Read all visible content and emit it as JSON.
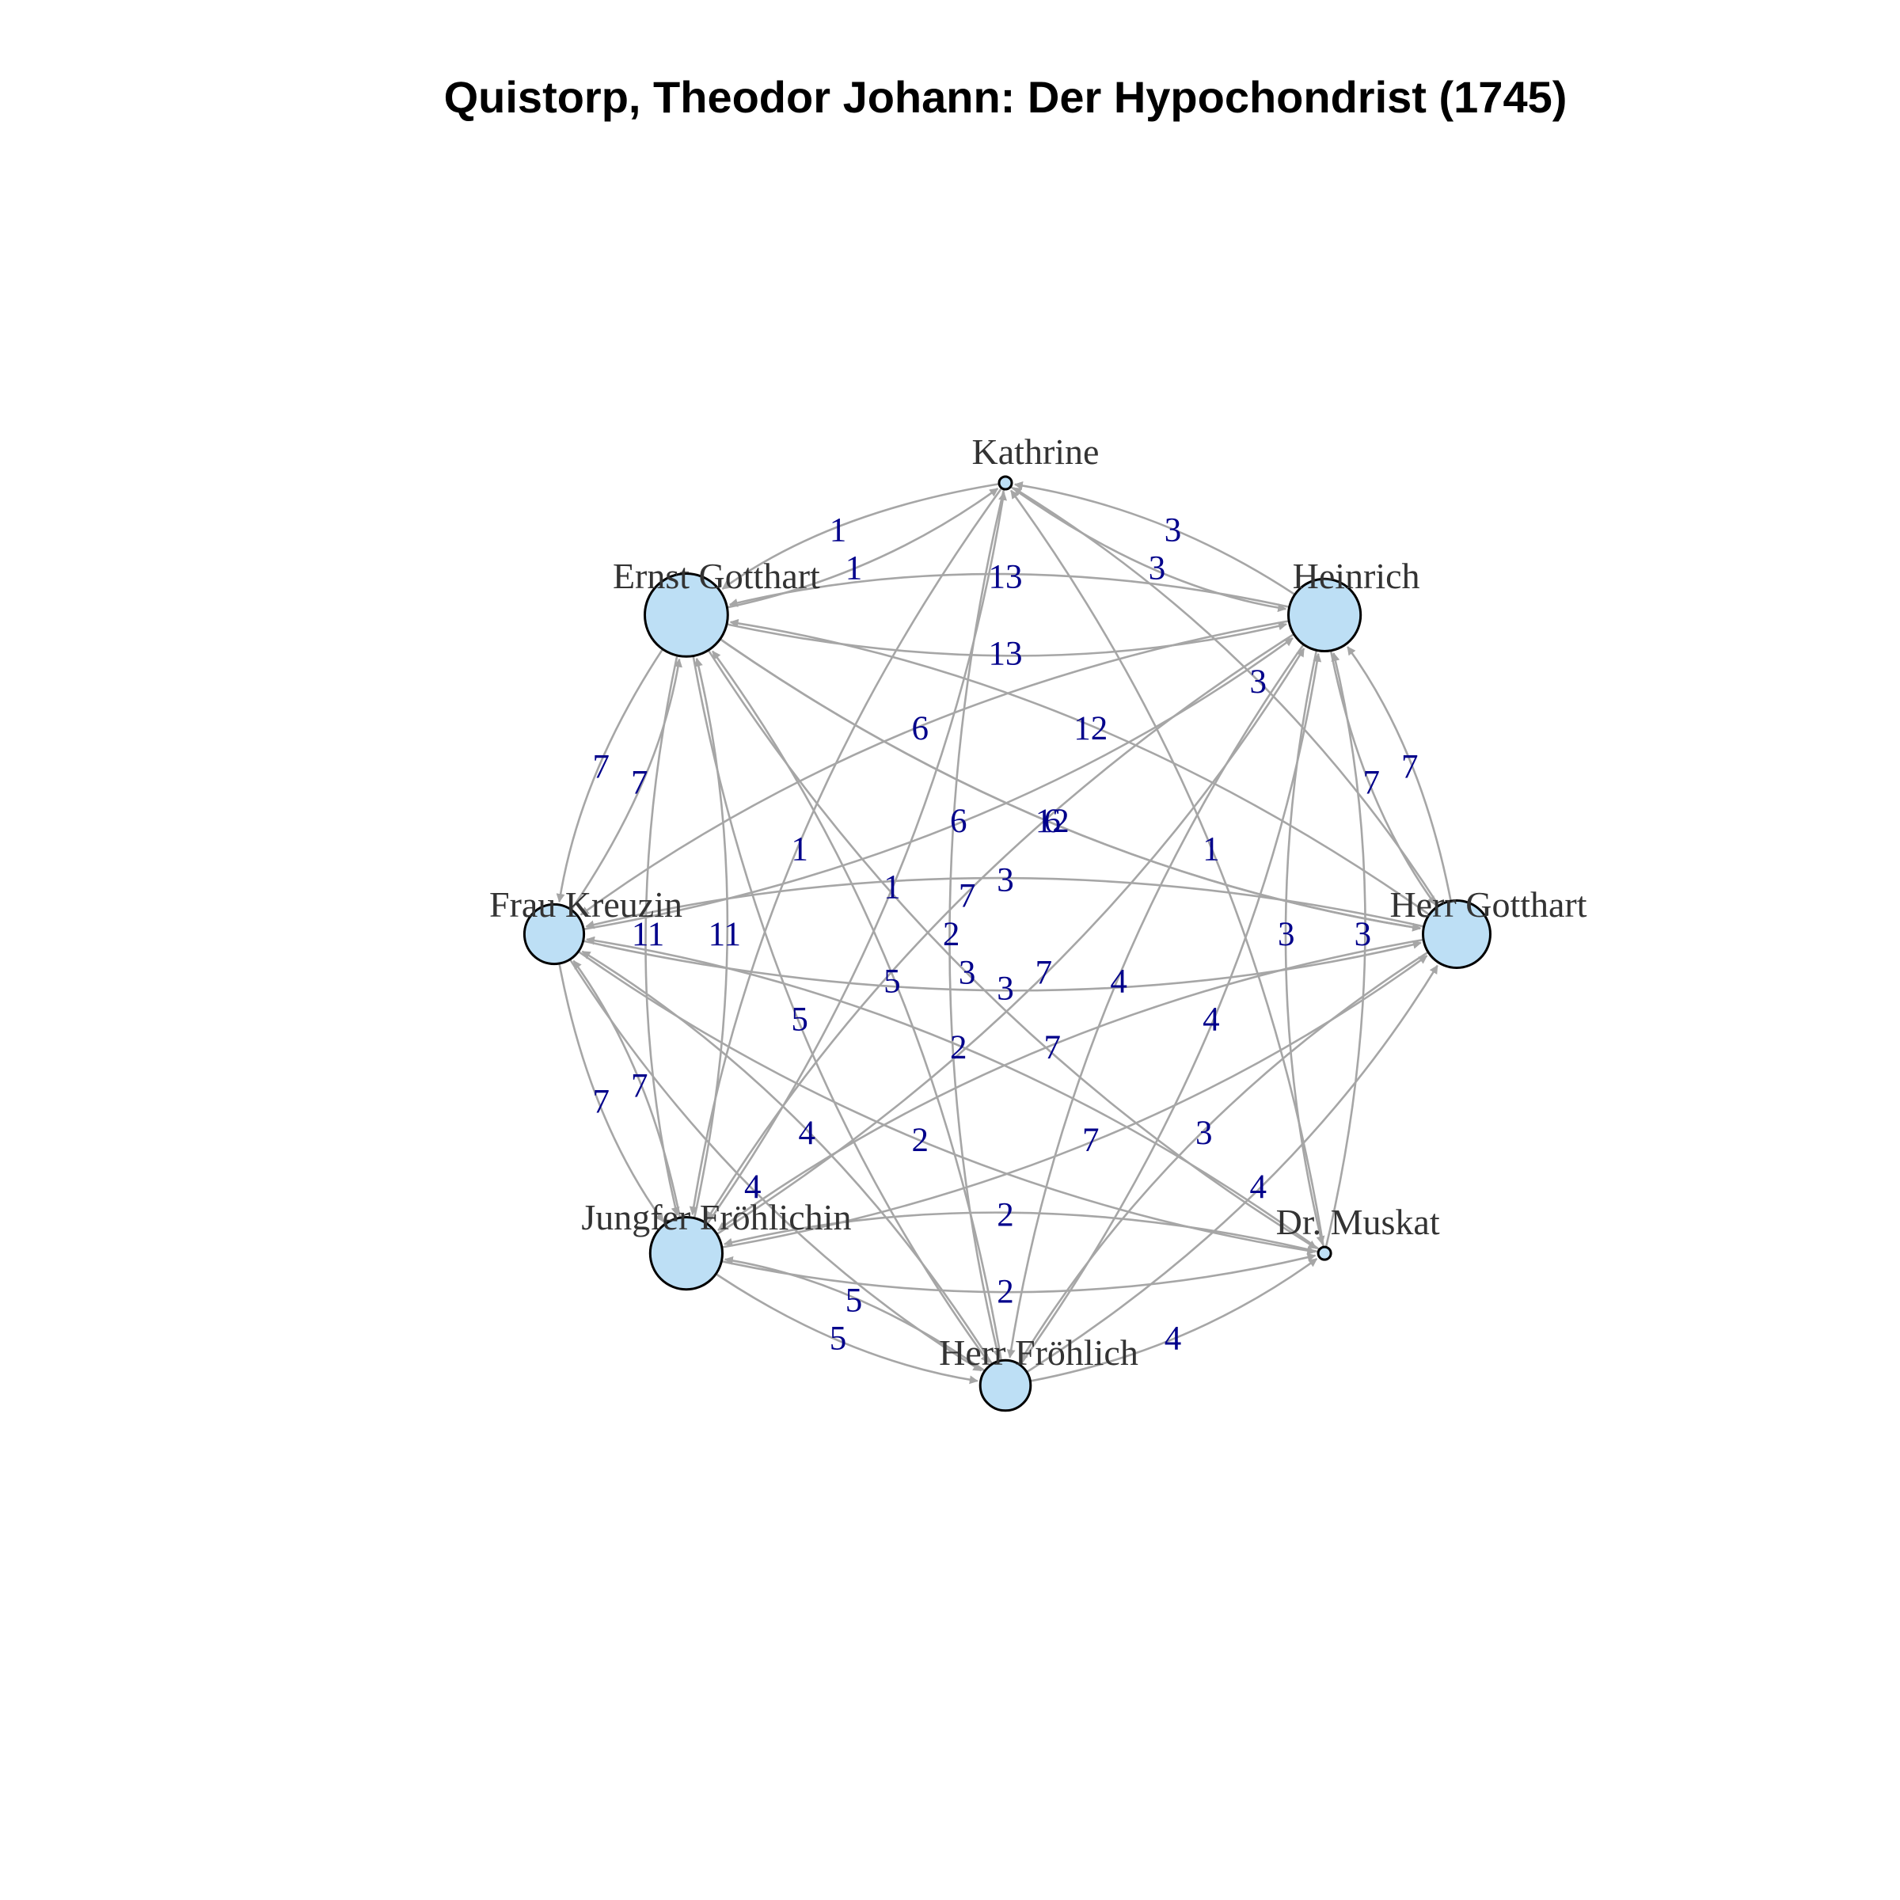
{
  "title": "Quistorp, Theodor Johann: Der Hypochondrist (1745)",
  "colors": {
    "background": "#ffffff",
    "node_fill": "#bddff5",
    "node_stroke": "#000000",
    "edge": "#a6a6a6",
    "edge_label": "#00008b",
    "node_label": "#333333"
  },
  "nodes": [
    {
      "id": "kathrine",
      "label": "Kathrine",
      "weight": 0
    },
    {
      "id": "ernst",
      "label": "Ernst Gotthart",
      "weight": 63
    },
    {
      "id": "heinrich",
      "label": "Heinrich",
      "weight": 45
    },
    {
      "id": "kreuzin",
      "label": "Frau Kreuzin",
      "weight": 28
    },
    {
      "id": "herrg",
      "label": "Herr Gotthart",
      "weight": 38
    },
    {
      "id": "jungfer",
      "label": "Jungfer Fröhlichin",
      "weight": 45
    },
    {
      "id": "muskat",
      "label": "Dr. Muskat",
      "weight": 0
    },
    {
      "id": "froehlich",
      "label": "Herr Fröhlich",
      "weight": 18
    }
  ],
  "edges": [
    {
      "from": "ernst",
      "to": "kathrine",
      "weight": "1",
      "bend": 0.12
    },
    {
      "from": "kathrine",
      "to": "heinrich",
      "weight": "3",
      "bend": 0.12
    },
    {
      "from": "kathrine",
      "to": "ernst",
      "weight": "1",
      "bend": 0.12
    },
    {
      "from": "heinrich",
      "to": "kathrine",
      "weight": "3",
      "bend": 0.12
    },
    {
      "from": "ernst",
      "to": "heinrich",
      "weight": "13",
      "bend": 0.12
    },
    {
      "from": "heinrich",
      "to": "ernst",
      "weight": "13",
      "bend": 0.12
    },
    {
      "from": "ernst",
      "to": "herrg",
      "weight": "6",
      "bend": 0.12
    },
    {
      "from": "herrg",
      "to": "kathrine",
      "weight": "3",
      "bend": 0.12
    },
    {
      "from": "jungfer",
      "to": "kathrine",
      "weight": "1",
      "bend": 0.12
    },
    {
      "from": "kathrine",
      "to": "jungfer",
      "weight": "1",
      "bend": 0.12
    },
    {
      "from": "ernst",
      "to": "herrg",
      "weight": "12",
      "bend": 0.12
    },
    {
      "from": "herrg",
      "to": "ernst",
      "weight": "12",
      "bend": 0.12
    },
    {
      "from": "heinrich",
      "to": "herrg",
      "weight": "7",
      "bend": 0.12
    },
    {
      "from": "herrg",
      "to": "heinrich",
      "weight": "7",
      "bend": 0.12
    },
    {
      "from": "kreuzin",
      "to": "ernst",
      "weight": "7",
      "bend": 0.12
    },
    {
      "from": "ernst",
      "to": "kreuzin",
      "weight": "7",
      "bend": 0.12
    },
    {
      "from": "muskat",
      "to": "heinrich",
      "weight": "3",
      "bend": 0.12
    },
    {
      "from": "heinrich",
      "to": "muskat",
      "weight": "3",
      "bend": 0.12
    },
    {
      "from": "kreuzin",
      "to": "heinrich",
      "weight": "6",
      "bend": 0.12
    },
    {
      "from": "heinrich",
      "to": "kreuzin",
      "weight": "6",
      "bend": 0.12
    },
    {
      "from": "jungfer",
      "to": "heinrich",
      "weight": "7",
      "bend": 0.12
    },
    {
      "from": "heinrich",
      "to": "jungfer",
      "weight": "7",
      "bend": 0.12
    },
    {
      "from": "ernst",
      "to": "jungfer",
      "weight": "11",
      "bend": 0.12
    },
    {
      "from": "jungfer",
      "to": "ernst",
      "weight": "11",
      "bend": 0.12
    },
    {
      "from": "kreuzin",
      "to": "herrg",
      "weight": "3",
      "bend": 0.12
    },
    {
      "from": "herrg",
      "to": "kreuzin",
      "weight": "3",
      "bend": 0.12
    },
    {
      "from": "froehlich",
      "to": "heinrich",
      "weight": "4",
      "bend": 0.12
    },
    {
      "from": "heinrich",
      "to": "froehlich",
      "weight": "4",
      "bend": 0.12
    },
    {
      "from": "ernst",
      "to": "froehlich",
      "weight": "5",
      "bend": 0.12
    },
    {
      "from": "froehlich",
      "to": "ernst",
      "weight": "5",
      "bend": 0.12
    },
    {
      "from": "ernst",
      "to": "muskat",
      "weight": "3",
      "bend": 0.12
    },
    {
      "from": "muskat",
      "to": "kathrine",
      "weight": "1",
      "bend": 0.12
    },
    {
      "from": "kreuzin",
      "to": "jungfer",
      "weight": "7",
      "bend": 0.12
    },
    {
      "from": "jungfer",
      "to": "kreuzin",
      "weight": "7",
      "bend": 0.12
    },
    {
      "from": "kreuzin",
      "to": "muskat",
      "weight": "2",
      "bend": 0.12
    },
    {
      "from": "muskat",
      "to": "kreuzin",
      "weight": "2",
      "bend": 0.12
    },
    {
      "from": "jungfer",
      "to": "herrg",
      "weight": "7",
      "bend": 0.12
    },
    {
      "from": "herrg",
      "to": "jungfer",
      "weight": "7",
      "bend": 0.12
    },
    {
      "from": "kreuzin",
      "to": "froehlich",
      "weight": "4",
      "bend": 0.12
    },
    {
      "from": "froehlich",
      "to": "kreuzin",
      "weight": "4",
      "bend": 0.12
    },
    {
      "from": "froehlich",
      "to": "herrg",
      "weight": "4",
      "bend": 0.12
    },
    {
      "from": "herrg",
      "to": "froehlich",
      "weight": "3",
      "bend": 0.12
    },
    {
      "from": "jungfer",
      "to": "muskat",
      "weight": "2",
      "bend": 0.12
    },
    {
      "from": "muskat",
      "to": "jungfer",
      "weight": "2",
      "bend": 0.12
    },
    {
      "from": "jungfer",
      "to": "froehlich",
      "weight": "5",
      "bend": 0.12
    },
    {
      "from": "froehlich",
      "to": "jungfer",
      "weight": "5",
      "bend": 0.12
    },
    {
      "from": "froehlich",
      "to": "muskat",
      "weight": "4",
      "bend": 0.12
    },
    {
      "from": "kathrine",
      "to": "froehlich",
      "weight": "2",
      "bend": 0.12
    }
  ]
}
